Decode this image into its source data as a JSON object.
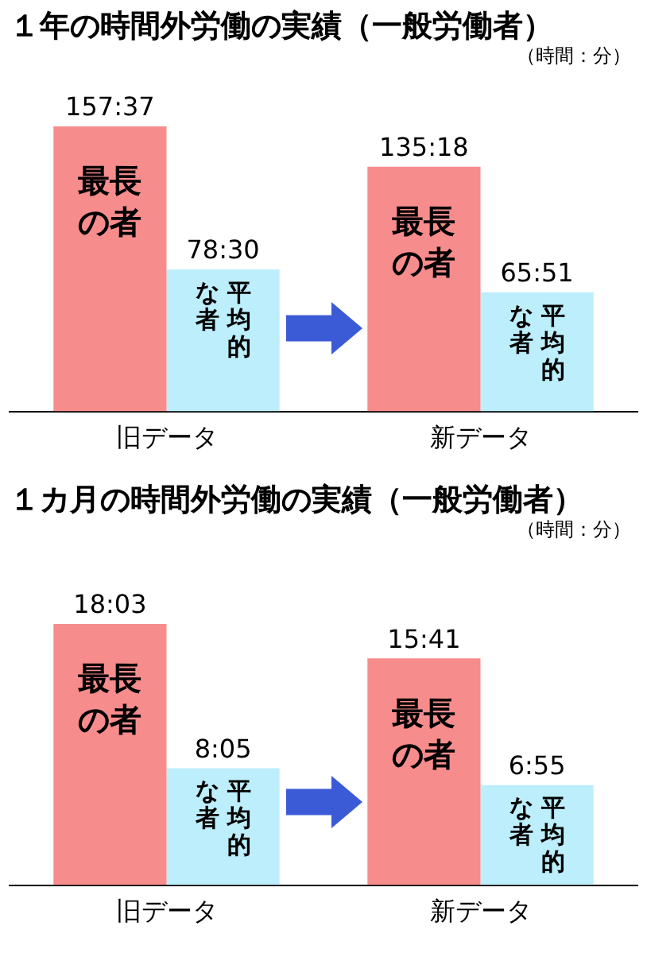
{
  "chart_data": [
    {
      "type": "bar",
      "title": "１年の時間外労働の実績（一般労働者）",
      "annotations": [
        "（時間：分）"
      ],
      "categories": [
        "旧データ",
        "新データ"
      ],
      "legend": false,
      "grid": false,
      "series": [
        {
          "name": "最長の者",
          "color": "#f78c8c",
          "values": [
            157.62,
            135.3
          ],
          "value_labels": [
            "157:37",
            "135:18"
          ]
        },
        {
          "name": "平均的な者",
          "color": "#bdeefc",
          "values": [
            78.5,
            65.85
          ],
          "value_labels": [
            "78:30",
            "65:51"
          ]
        }
      ]
    },
    {
      "type": "bar",
      "title": "１カ月の時間外労働の実績（一般労働者）",
      "annotations": [
        "（時間：分）"
      ],
      "categories": [
        "旧データ",
        "新データ"
      ],
      "legend": false,
      "grid": false,
      "series": [
        {
          "name": "最長の者",
          "color": "#f78c8c",
          "values": [
            18.05,
            15.68
          ],
          "value_labels": [
            "18:03",
            "15:41"
          ]
        },
        {
          "name": "平均的な者",
          "color": "#bdeefc",
          "values": [
            8.08,
            6.92
          ],
          "value_labels": [
            "8:05",
            "6:55"
          ]
        }
      ]
    }
  ]
}
